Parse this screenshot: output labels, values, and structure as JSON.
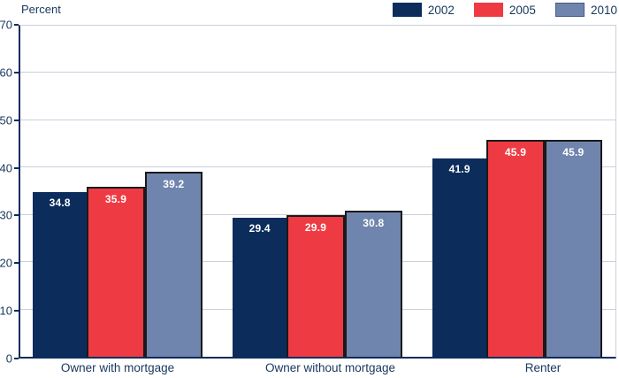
{
  "chart_data": {
    "type": "bar",
    "title": "",
    "ylabel": "Percent",
    "xlabel": "",
    "categories": [
      "Owner with mortgage",
      "Owner without mortgage",
      "Renter"
    ],
    "series": [
      {
        "name": "2002",
        "color": "#0C2C5C",
        "bar_border": null,
        "values": [
          34.8,
          29.4,
          41.9
        ]
      },
      {
        "name": "2005",
        "color": "#EE3B43",
        "bar_border": "#1A1A1A",
        "values": [
          35.9,
          29.9,
          45.9
        ]
      },
      {
        "name": "2010",
        "color": "#7085AD",
        "bar_border": "#1A1A1A",
        "swatch_border": "#44598A",
        "values": [
          39.2,
          30.8,
          45.9
        ]
      }
    ],
    "ylim": [
      0,
      70
    ],
    "yticks": [
      0,
      10,
      20,
      30,
      40,
      50,
      60,
      70
    ],
    "grid": true,
    "legend_position": "top-right",
    "value_labels": true
  },
  "colors": {
    "axis": "#0C2C5C",
    "text": "#17375D",
    "gridline": "#C9D0DC",
    "value_label": "#FFFFFF",
    "background": "#FFFFFF"
  }
}
